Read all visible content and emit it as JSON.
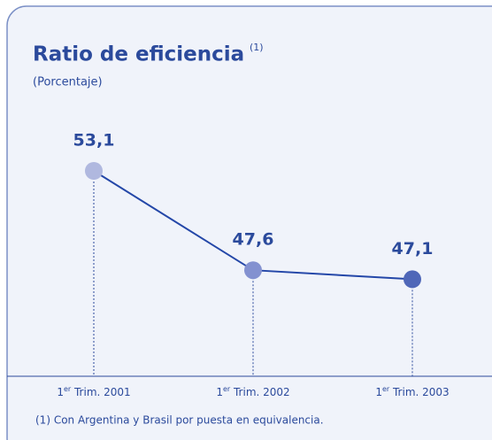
{
  "chart_data": {
    "type": "line",
    "title": "Ratio de eficiencia",
    "title_marker": "(1)",
    "subtitle": "(Porcentaje)",
    "categories": [
      "1er Trim. 2001",
      "1er Trim. 2002",
      "1er Trim. 2003"
    ],
    "values": [
      53.1,
      47.6,
      47.1
    ],
    "value_labels": [
      "53,1",
      "47,6",
      "47,1"
    ],
    "color": "#2447a8",
    "point_colors": [
      "#b0b8df",
      "#8391d0",
      "#4f67b8"
    ],
    "footnote": "(1) Con Argentina y Brasil por puesta en equivalencia."
  }
}
